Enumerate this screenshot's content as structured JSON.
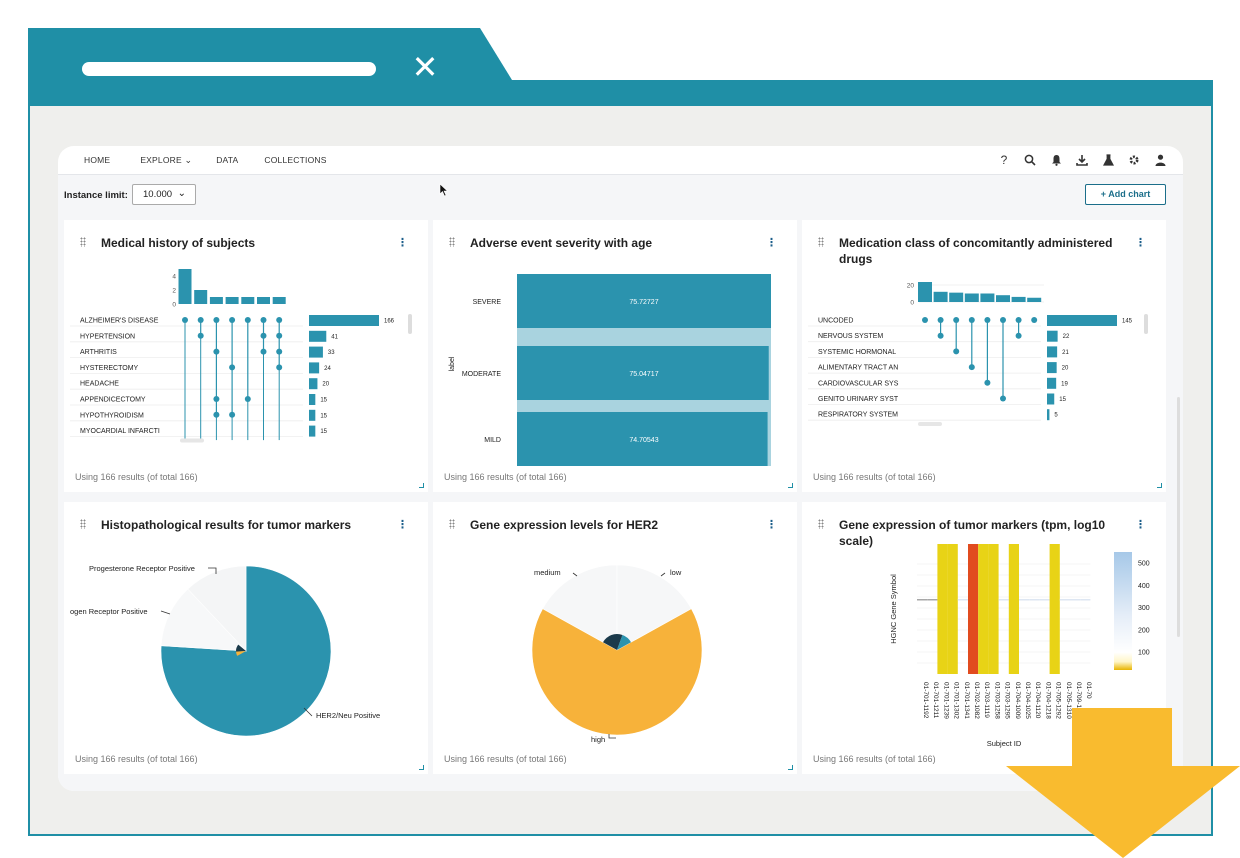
{
  "browser": {
    "close_glyph": "✕"
  },
  "nav": {
    "items": [
      "HOME",
      "EXPLORE",
      "DATA",
      "COLLECTIONS"
    ],
    "icons": [
      "help-icon",
      "search-icon",
      "bell-icon",
      "download-icon",
      "flask-icon",
      "gear-icon",
      "user-icon"
    ]
  },
  "toolbar": {
    "instance_limit_label": "Instance limit:",
    "instance_limit_value": "10.000",
    "add_chart_label": "+ Add chart"
  },
  "cards": [
    {
      "title": "Medical history of subjects",
      "footer": "Using 166 results (of total 166)"
    },
    {
      "title": "Adverse event severity with age",
      "footer": "Using 166 results (of total 166)"
    },
    {
      "title": "Medication class of concomitantly administered drugs",
      "footer": "Using 166 results (of total 166)"
    },
    {
      "title": "Histopathological results for tumor markers",
      "footer": "Using 166 results (of total 166)"
    },
    {
      "title": "Gene expression levels for HER2",
      "footer": "Using 166 results (of total 166)"
    },
    {
      "title": "Gene expression of tumor markers (tpm, log10 scale)",
      "footer": "Using 166 results (of total 166)"
    }
  ],
  "colors": {
    "accent": "#1f8fa6",
    "bar": "#2b93ae",
    "orange": "#f7b23a",
    "navy": "#1b3a4b",
    "red": "#e14b1f",
    "yellow": "#e8d316"
  },
  "chart_data": [
    {
      "type": "upset",
      "title": "Medical history of subjects",
      "intersection_yticks": [
        "0",
        "2",
        "4"
      ],
      "intersection_sizes": [
        5,
        2,
        1,
        1,
        1,
        1,
        1
      ],
      "sets": [
        "ALZHEIMER'S DISEASE",
        "HYPERTENSION",
        "ARTHRITIS",
        "HYSTERECTOMY",
        "HEADACHE",
        "APPENDICECTOMY",
        "HYPOTHYROIDISM",
        "MYOCARDIAL INFARCTI"
      ],
      "set_sizes": [
        166,
        41,
        33,
        24,
        20,
        15,
        15,
        15
      ],
      "set_size_labels": [
        "166",
        "41",
        "33",
        "24",
        "20",
        "15",
        "15",
        "15"
      ]
    },
    {
      "type": "bar",
      "title": "Adverse event severity with age",
      "ylabel": "label",
      "categories": [
        "SEVERE",
        "MODERATE",
        "MILD"
      ],
      "values": [
        75.72727,
        75.04717,
        74.70543
      ],
      "value_labels": [
        "75.72727",
        "75.04717",
        "74.70543"
      ]
    },
    {
      "type": "upset",
      "title": "Medication class of concomitantly administered drugs",
      "intersection_yticks": [
        "0",
        "20",
        "40",
        "60"
      ],
      "intersection_sizes": [
        72,
        12,
        11,
        10,
        10,
        8,
        6,
        5
      ],
      "sets": [
        "UNCODED",
        "NERVOUS SYSTEM",
        "SYSTEMIC HORMONAL",
        "ALIMENTARY TRACT AN",
        "CARDIOVASCULAR SYS",
        "GENITO URINARY SYST",
        "RESPIRATORY SYSTEM"
      ],
      "set_sizes": [
        145,
        22,
        21,
        20,
        19,
        15,
        5
      ],
      "set_size_labels": [
        "145",
        "22",
        "21",
        "20",
        "19",
        "15",
        "5"
      ]
    },
    {
      "type": "pie",
      "title": "Histopathological results for tumor markers",
      "labels": [
        "HER2/Neu Positive",
        "Progesterone Receptor Positive",
        "ogen Receptor Positive"
      ],
      "values": [
        76,
        12,
        12
      ]
    },
    {
      "type": "pie",
      "title": "Gene expression levels for HER2",
      "labels": [
        "high",
        "medium",
        "low"
      ],
      "values": [
        66,
        17,
        17
      ]
    },
    {
      "type": "heatmap",
      "title": "Gene expression of tumor markers (tpm, log10 scale)",
      "xlabel": "Subject ID",
      "ylabel": "HGNC Gene Symbol",
      "x": [
        "01-701-1192",
        "01-701-1211",
        "01-701-1239",
        "01-701-1302",
        "01-701-1341",
        "01-702-1082",
        "01-703-1119",
        "01-703-1258",
        "01-703-1295",
        "01-704-1009",
        "01-704-1025",
        "01-704-1120",
        "01-704-1218",
        "01-705-1292",
        "01-705-1310",
        "01-709-1081",
        "01-70"
      ],
      "colorbar_ticks": [
        "100",
        "200",
        "300",
        "400",
        "500"
      ]
    }
  ]
}
